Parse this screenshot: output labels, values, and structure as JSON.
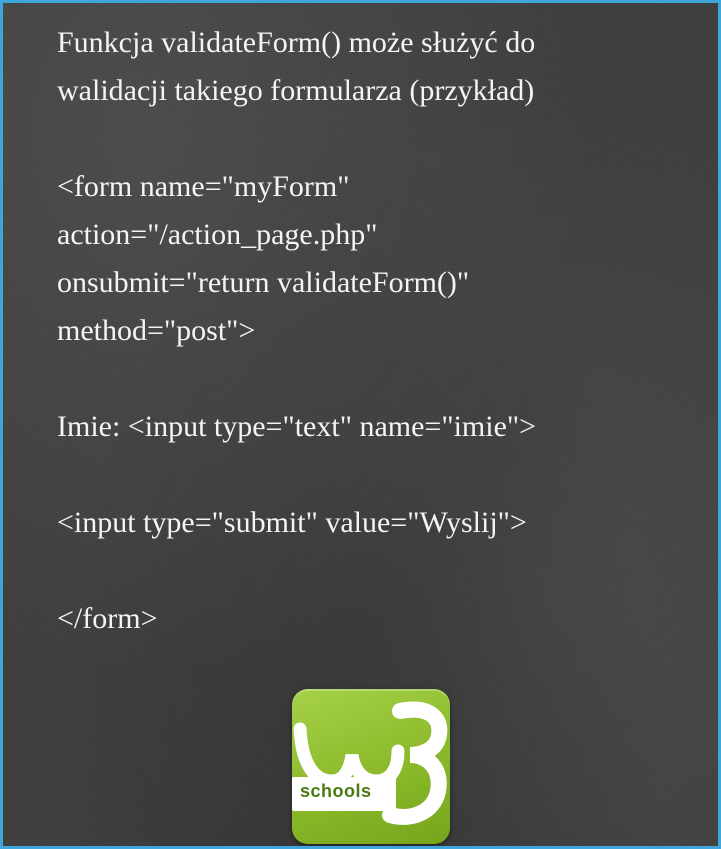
{
  "slide": {
    "lines": [
      "Funkcja validateForm() może służyć do",
      "walidacji takiego formularza (przykład)",
      "",
      "<form name=\"myForm\"",
      "action=\"/action_page.php\"",
      "onsubmit=\"return validateForm()\"",
      "method=\"post\">",
      "",
      "Imie: <input type=\"text\" name=\"imie\">",
      "",
      "<input type=\"submit\" value=\"Wyslij\">",
      "",
      "</form>"
    ]
  },
  "logo": {
    "text": "schools",
    "big_glyph": "w3",
    "colors": {
      "background": "#8dbb2c",
      "glyph": "#ffffff",
      "text": "#4a7a10"
    }
  },
  "colors": {
    "frame_border": "#3ea6da",
    "board": "#363636",
    "chalk_text": "#f4f4f4"
  }
}
